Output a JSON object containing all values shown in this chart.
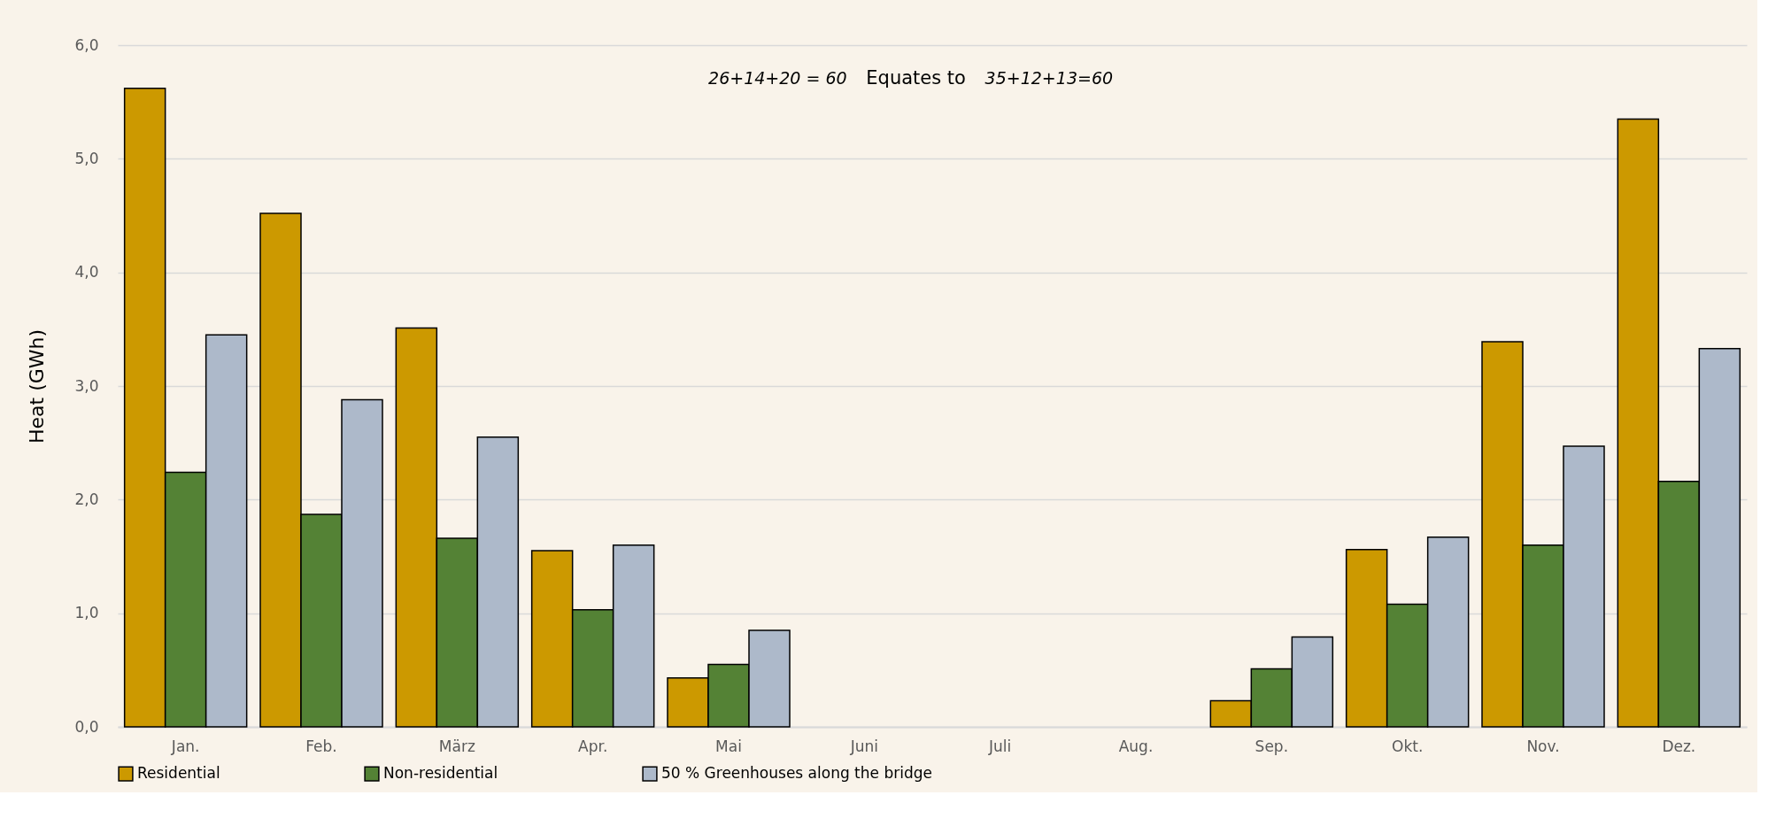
{
  "chart_data": {
    "type": "bar",
    "ylabel": "Heat (GWh)",
    "categories": [
      "Jan.",
      "Feb.",
      "März",
      "Apr.",
      "Mai",
      "Juni",
      "Juli",
      "Aug.",
      "Sep.",
      "Okt.",
      "Nov.",
      "Dez."
    ],
    "series": [
      {
        "name": "Residential",
        "color": "#cc9900",
        "values": [
          5.62,
          4.52,
          3.51,
          1.55,
          0.43,
          null,
          null,
          null,
          0.23,
          1.56,
          3.39,
          5.35
        ]
      },
      {
        "name": "Non-residential",
        "color": "#548235",
        "values": [
          2.24,
          1.87,
          1.66,
          1.03,
          0.55,
          null,
          null,
          null,
          0.51,
          1.08,
          1.6,
          2.16
        ]
      },
      {
        "name": "50 % Greenhouses along the bridge",
        "color": "#adb9ca",
        "values": [
          3.45,
          2.88,
          2.55,
          1.6,
          0.85,
          null,
          null,
          null,
          0.79,
          1.67,
          2.47,
          3.33
        ]
      }
    ],
    "ylim": [
      0,
      6
    ],
    "yticks": [
      {
        "value": 0,
        "label": "0,0"
      },
      {
        "value": 1,
        "label": "1,0"
      },
      {
        "value": 2,
        "label": "2,0"
      },
      {
        "value": 3,
        "label": "3,0"
      },
      {
        "value": 4,
        "label": "4,0"
      },
      {
        "value": 5,
        "label": "5,0"
      },
      {
        "value": 6,
        "label": "6,0"
      }
    ],
    "grid": "y",
    "legend": "bottom",
    "annotations": [
      "26+14+20 = 60",
      "Equates to",
      "35+12+13=60"
    ]
  }
}
